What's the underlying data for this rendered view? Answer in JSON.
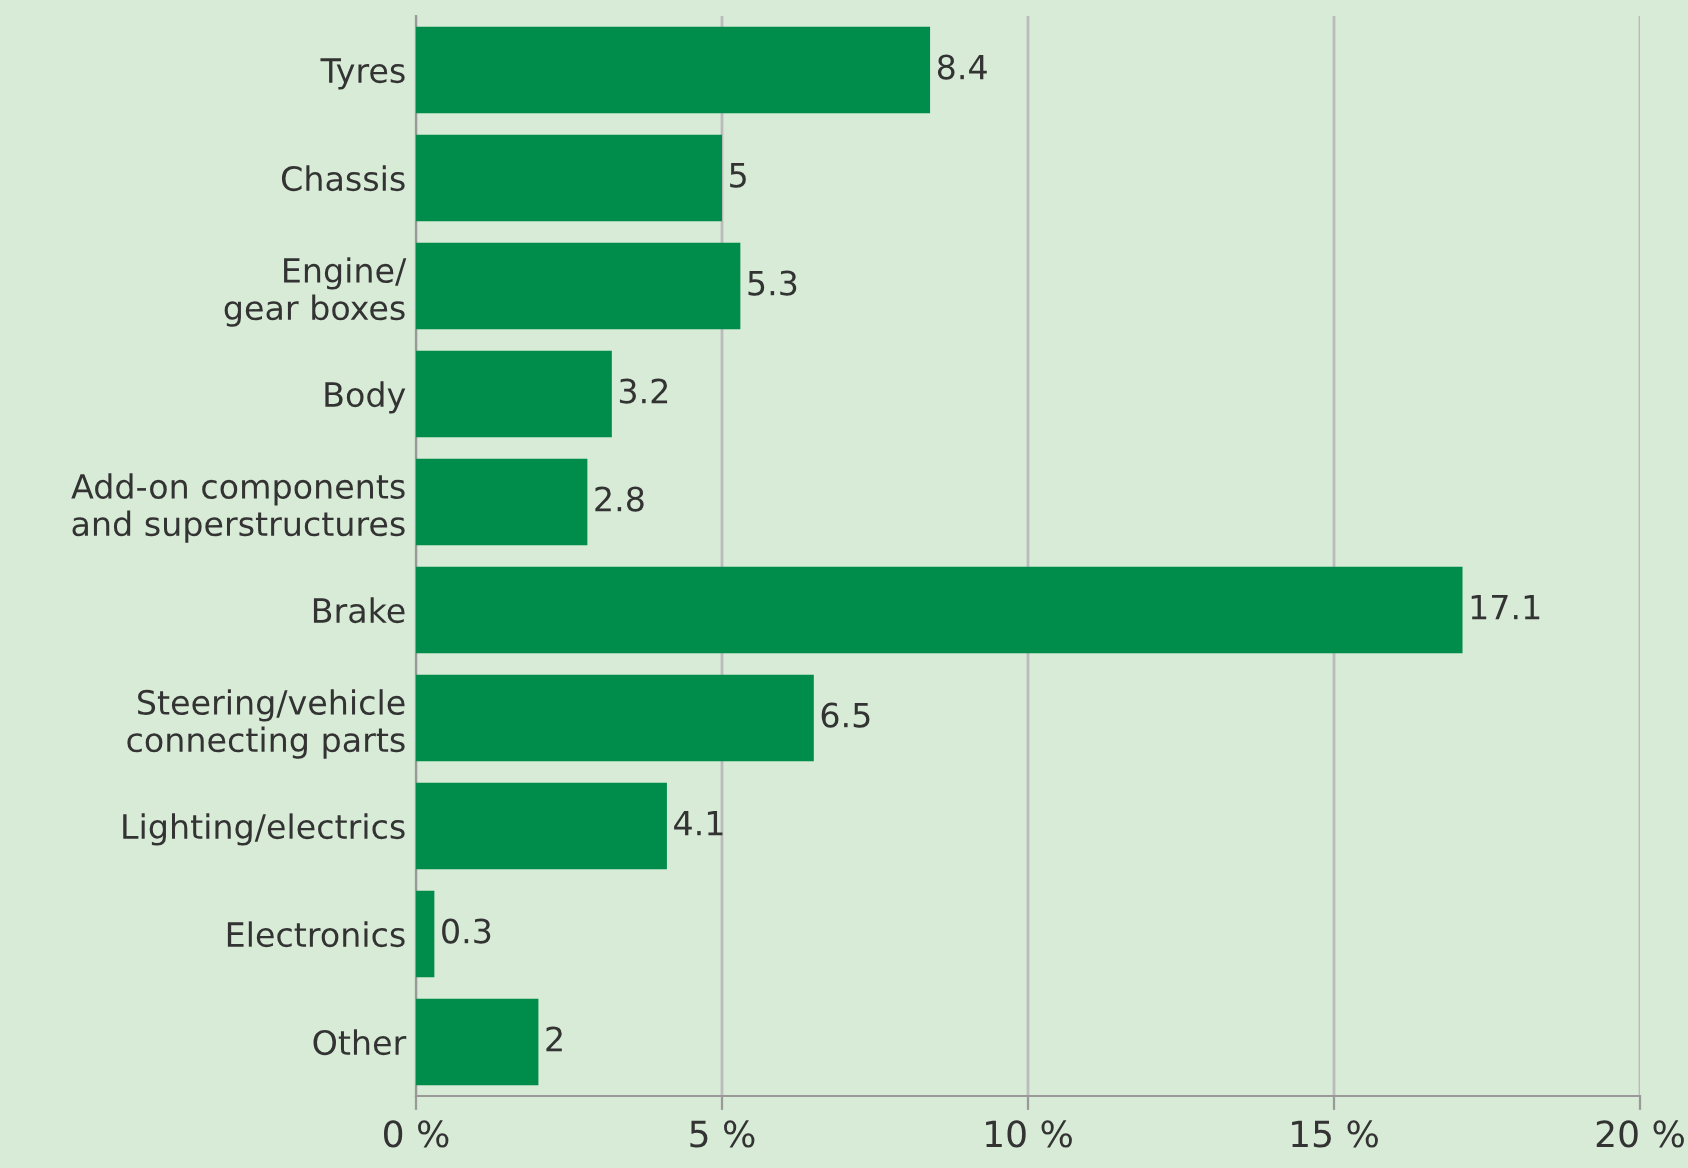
{
  "chart_data": {
    "type": "bar",
    "orientation": "horizontal",
    "categories": [
      "Tyres",
      "Chassis",
      "Engine/\ngear boxes",
      "Body",
      "Add-on components\nand superstructures",
      "Brake",
      "Steering/vehicle\nconnecting parts",
      "Lighting/electrics",
      "Electronics",
      "Other"
    ],
    "values": [
      8.4,
      5,
      5.3,
      3.2,
      2.8,
      17.1,
      6.5,
      4.1,
      0.3,
      2
    ],
    "color": "#008c4a",
    "xlim": [
      0,
      20
    ],
    "xticks": [
      {
        "value": 0,
        "label": "0 %"
      },
      {
        "value": 5,
        "label": "5 %"
      },
      {
        "value": 10,
        "label": "10 %"
      },
      {
        "value": 15,
        "label": "15 %"
      },
      {
        "value": 20,
        "label": "20 %"
      }
    ],
    "grid": "x",
    "data_labels": true
  }
}
